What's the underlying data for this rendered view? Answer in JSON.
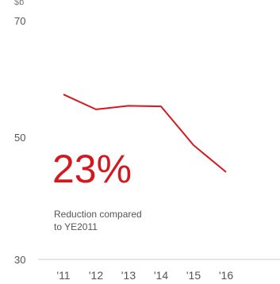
{
  "chart_data": {
    "type": "line",
    "unit_label": "$b",
    "x": [
      "'11",
      "'12",
      "'13",
      "'14",
      "'15",
      "'16"
    ],
    "series": [
      {
        "values": [
          57.5,
          55.0,
          55.6,
          55.5,
          49.0,
          44.5
        ]
      }
    ],
    "ylim": [
      30,
      70
    ],
    "yticks": [
      "70",
      "50",
      "30"
    ],
    "grid": false,
    "line_color": "#d4181f",
    "axis_color": "#cccccc"
  },
  "callout": {
    "value": "23%",
    "description_line1": "Reduction compared",
    "description_line2": "to YE2011"
  }
}
